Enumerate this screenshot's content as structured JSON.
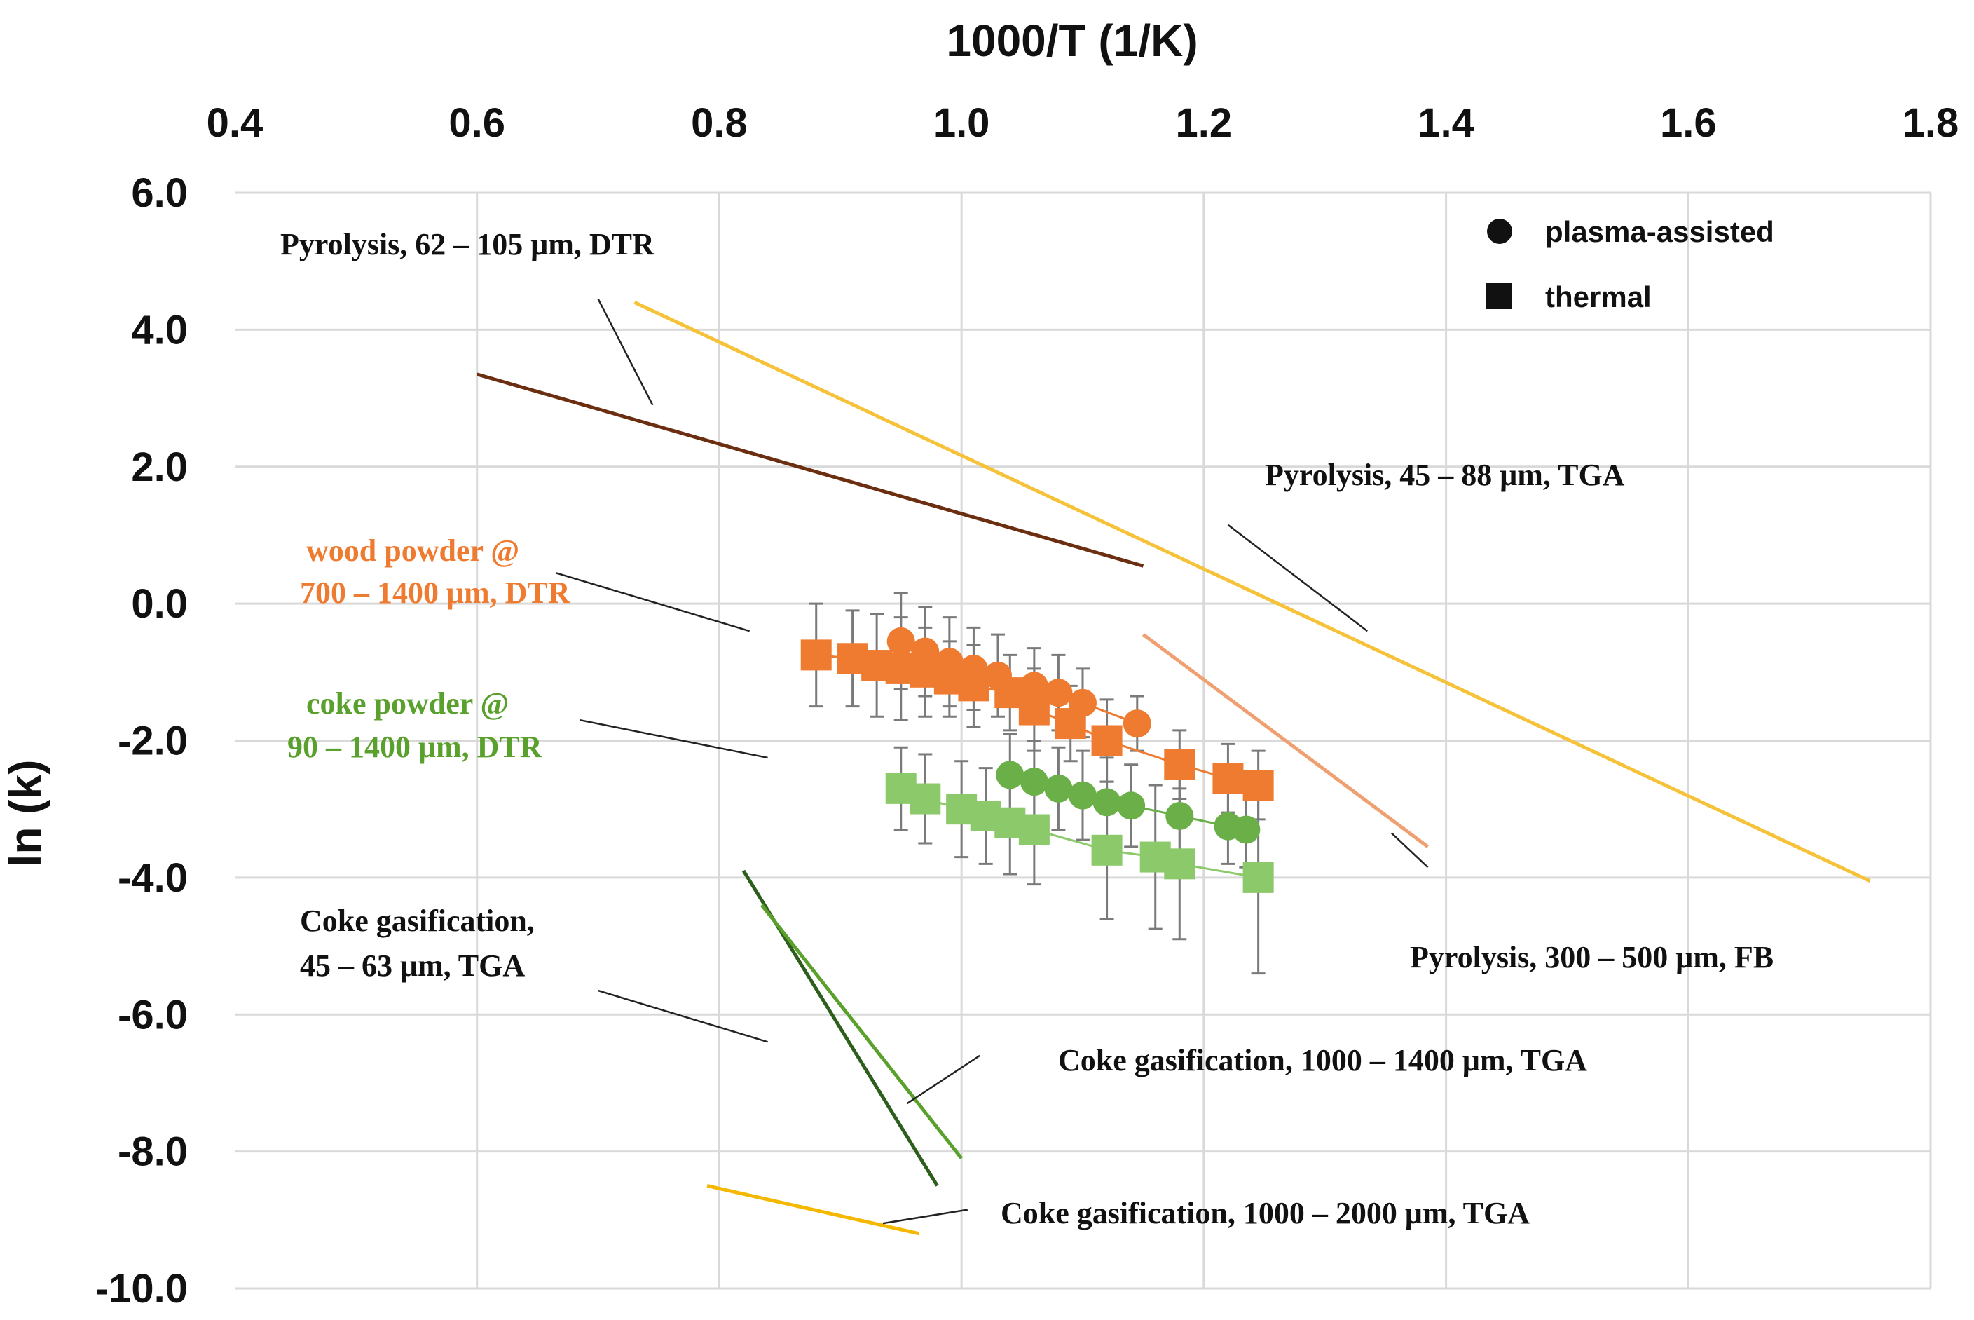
{
  "chart_data": {
    "type": "scatter",
    "xlabel": "1000/T (1/K)",
    "ylabel": "ln (k)",
    "xlim": [
      0.4,
      1.8
    ],
    "ylim": [
      -10.0,
      6.0
    ],
    "xticks": [
      "0.4",
      "0.6",
      "0.8",
      "1.0",
      "1.2",
      "1.4",
      "1.6",
      "1.8"
    ],
    "yticks": [
      "6.0",
      "4.0",
      "2.0",
      "0.0",
      "-2.0",
      "-4.0",
      "-6.0",
      "-8.0",
      "-10.0"
    ],
    "grid": true,
    "legend": {
      "position": "top-right",
      "entries": [
        {
          "label": "plasma-assisted",
          "marker": "circle"
        },
        {
          "label": "thermal",
          "marker": "square"
        }
      ]
    },
    "lines": [
      {
        "name": "Pyrolysis, 62 – 105 μm, DTR",
        "color": "#6b2e10",
        "x": [
          0.6,
          1.15
        ],
        "y": [
          3.35,
          0.55
        ]
      },
      {
        "name": "Pyrolysis, 45 – 88 μm, TGA",
        "color": "#f6c23a",
        "x": [
          0.73,
          1.75
        ],
        "y": [
          4.4,
          -4.05
        ]
      },
      {
        "name": "Pyrolysis, 300 – 500 μm, FB",
        "color": "#f0a070",
        "x": [
          1.15,
          1.385
        ],
        "y": [
          -0.45,
          -3.55
        ]
      },
      {
        "name": "Coke gasification, 45 – 63 μm, TGA",
        "color": "#2e5e1c",
        "x": [
          0.82,
          0.98
        ],
        "y": [
          -3.9,
          -8.5
        ]
      },
      {
        "name": "Coke gasification, 1000 – 1400 μm, TGA",
        "color": "#5aa02c",
        "x": [
          0.835,
          1.0
        ],
        "y": [
          -4.4,
          -8.1
        ]
      },
      {
        "name": "Coke gasification, 1000 – 2000 μm, TGA",
        "color": "#f5b800",
        "x": [
          0.79,
          0.965
        ],
        "y": [
          -8.5,
          -9.2
        ]
      }
    ],
    "series": [
      {
        "name": "wood powder thermal",
        "marker": "square",
        "color": "#ee7b30",
        "x": [
          0.88,
          0.91,
          0.93,
          0.95,
          0.97,
          0.99,
          1.01,
          1.04,
          1.06,
          1.09,
          1.12,
          1.18,
          1.22,
          1.245
        ],
        "y": [
          -0.75,
          -0.8,
          -0.9,
          -0.95,
          -1.0,
          -1.1,
          -1.2,
          -1.3,
          -1.55,
          -1.75,
          -2.0,
          -2.35,
          -2.55,
          -2.65
        ],
        "err": [
          0.75,
          0.7,
          0.75,
          0.75,
          0.65,
          0.55,
          0.6,
          0.55,
          0.6,
          0.55,
          0.6,
          0.5,
          0.5,
          0.5
        ]
      },
      {
        "name": "wood powder plasma-assisted",
        "marker": "circle",
        "color": "#ee7b30",
        "x": [
          0.95,
          0.97,
          0.99,
          1.01,
          1.03,
          1.06,
          1.08,
          1.1,
          1.145
        ],
        "y": [
          -0.55,
          -0.7,
          -0.85,
          -0.95,
          -1.05,
          -1.2,
          -1.3,
          -1.45,
          -1.75
        ],
        "err": [
          0.7,
          0.65,
          0.65,
          0.6,
          0.6,
          0.55,
          0.55,
          0.5,
          0.4
        ]
      },
      {
        "name": "coke powder thermal",
        "marker": "square",
        "color": "#8cc96a",
        "x": [
          0.95,
          0.97,
          1.0,
          1.02,
          1.04,
          1.06,
          1.12,
          1.16,
          1.18,
          1.245
        ],
        "y": [
          -2.7,
          -2.85,
          -3.0,
          -3.1,
          -3.2,
          -3.3,
          -3.6,
          -3.7,
          -3.8,
          -4.0
        ],
        "err": [
          0.6,
          0.65,
          0.7,
          0.7,
          0.75,
          0.8,
          1.0,
          1.05,
          1.1,
          1.4
        ]
      },
      {
        "name": "coke powder plasma-assisted",
        "marker": "circle",
        "color": "#6aaf48",
        "x": [
          1.04,
          1.06,
          1.08,
          1.1,
          1.12,
          1.14,
          1.18,
          1.22,
          1.235
        ],
        "y": [
          -2.5,
          -2.6,
          -2.7,
          -2.8,
          -2.9,
          -2.95,
          -3.1,
          -3.25,
          -3.3
        ],
        "err": [
          0.6,
          0.6,
          0.6,
          0.65,
          0.65,
          0.6,
          0.55,
          0.55,
          0.55
        ]
      }
    ],
    "annotations": [
      {
        "text": "Pyrolysis, 62 – 105 μm, DTR",
        "color": "#111111"
      },
      {
        "text": "Pyrolysis, 45 – 88 μm, TGA",
        "color": "#111111"
      },
      {
        "text": "Pyrolysis, 300 – 500 μm, FB",
        "color": "#111111"
      },
      {
        "text": "wood powder @",
        "color": "#ee7b30"
      },
      {
        "text": "700 – 1400 μm, DTR",
        "color": "#ee7b30"
      },
      {
        "text": "coke powder @",
        "color": "#5aa02c"
      },
      {
        "text": "90 – 1400 μm, DTR",
        "color": "#5aa02c"
      },
      {
        "text": "Coke gasification,",
        "color": "#111111"
      },
      {
        "text": "45 – 63 μm, TGA",
        "color": "#111111"
      },
      {
        "text": "Coke gasification, 1000 – 1400 μm, TGA",
        "color": "#111111"
      },
      {
        "text": "Coke gasification, 1000 – 2000 μm, TGA",
        "color": "#111111"
      }
    ]
  }
}
